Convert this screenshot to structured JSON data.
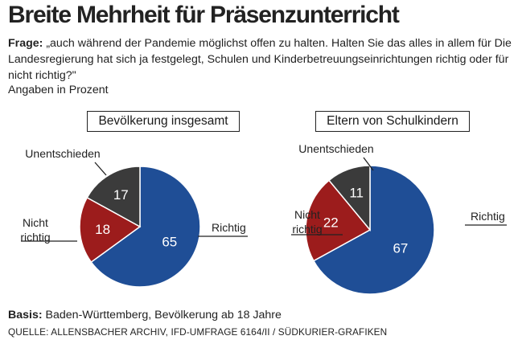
{
  "title": "Breite Mehrheit für Präsenzunterricht",
  "question": {
    "label": "Frage:",
    "text": "„auch während der Pandemie möglichst offen zu halten. Halten Sie das alles in allem für Die Landesregierung hat sich ja festgelegt, Schulen und Kinderbetreuungseinrichtungen richtig oder für nicht richtig?\""
  },
  "unit_note": "Angaben in Prozent",
  "basis": {
    "label": "Basis:",
    "text": "Baden-Württemberg, Bevölkerung ab 18 Jahre"
  },
  "source": "QUELLE: ALLENSBACHER ARCHIV, IFD-UMFRAGE 6164/II / SÜDKURIER-GRAFIKEN",
  "colors": {
    "Richtig": "#1f4e96",
    "Nicht richtig": "#9c1c1c",
    "Unentschieden": "#3b3b3b"
  },
  "chart_data": [
    {
      "type": "pie",
      "title": "Bevölkerung insgesamt",
      "labels": [
        "Richtig",
        "Nicht richtig",
        "Unentschieden"
      ],
      "values": [
        65,
        18,
        17
      ]
    },
    {
      "type": "pie",
      "title": "Eltern von Schulkindern",
      "labels": [
        "Richtig",
        "Nicht richtig",
        "Unentschieden"
      ],
      "values": [
        67,
        22,
        11
      ]
    }
  ]
}
